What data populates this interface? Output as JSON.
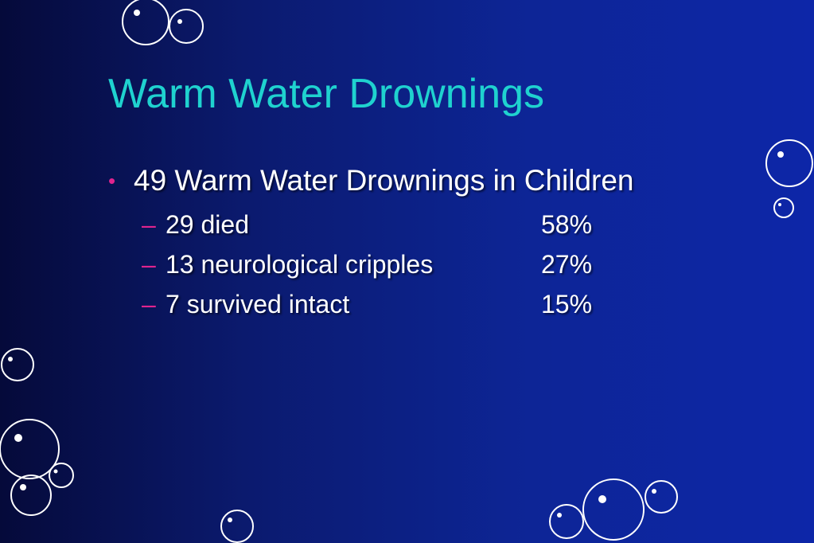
{
  "slide": {
    "title": "Warm Water Drownings",
    "bullet": {
      "marker": "•",
      "text": "49 Warm Water Drownings in Children"
    },
    "sub_items": [
      {
        "dash": "–",
        "text": "29 died",
        "percent": "58%"
      },
      {
        "dash": "–",
        "text": "13 neurological cripples",
        "percent": "27%"
      },
      {
        "dash": "–",
        "text": "7 survived intact",
        "percent": "15%"
      }
    ]
  },
  "colors": {
    "title": "#1fd2cf",
    "body_text": "#ffffff",
    "bullet_marker": "#e0248e",
    "background_dark": "#050a3a",
    "background_light": "#0d26a8",
    "bubble": "#ffffff"
  },
  "decor": {
    "bubble_icon": "bubble-icon"
  }
}
